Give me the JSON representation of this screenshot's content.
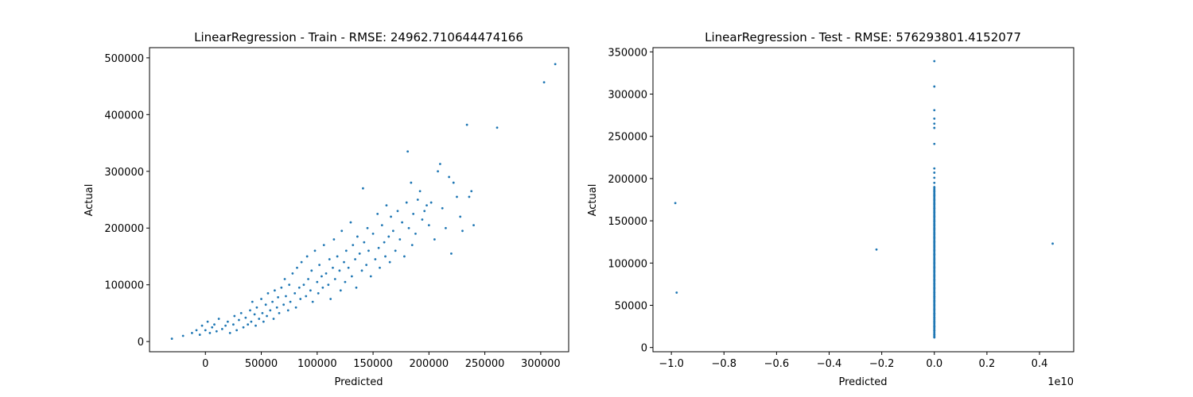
{
  "chart_data": [
    {
      "type": "scatter",
      "title": "LinearRegression - Train - RMSE: 24962.710644474166",
      "xlabel": "Predicted",
      "ylabel": "Actual",
      "xlim": [
        -50000,
        325000
      ],
      "ylim": [
        -18000,
        518000
      ],
      "xticks": [
        0,
        50000,
        100000,
        150000,
        200000,
        250000,
        300000
      ],
      "xtick_labels": [
        "0",
        "50000",
        "100000",
        "150000",
        "200000",
        "250000",
        "300000"
      ],
      "yticks": [
        0,
        100000,
        200000,
        300000,
        400000,
        500000
      ],
      "ytick_labels": [
        "0",
        "100000",
        "200000",
        "300000",
        "400000",
        "500000"
      ],
      "x_offset_label": "",
      "grid": false,
      "color": "#1f77b4",
      "points": [
        [
          -30000,
          5000
        ],
        [
          -20000,
          10000
        ],
        [
          -12000,
          15000
        ],
        [
          -8000,
          20000
        ],
        [
          -5000,
          12000
        ],
        [
          -3000,
          28000
        ],
        [
          0,
          20000
        ],
        [
          2000,
          35000
        ],
        [
          4000,
          15000
        ],
        [
          6000,
          25000
        ],
        [
          8000,
          30000
        ],
        [
          10000,
          18000
        ],
        [
          12000,
          40000
        ],
        [
          15000,
          22000
        ],
        [
          18000,
          28000
        ],
        [
          20000,
          35000
        ],
        [
          22000,
          15000
        ],
        [
          25000,
          30000
        ],
        [
          26000,
          45000
        ],
        [
          28000,
          20000
        ],
        [
          30000,
          38000
        ],
        [
          32000,
          50000
        ],
        [
          34000,
          25000
        ],
        [
          36000,
          42000
        ],
        [
          38000,
          30000
        ],
        [
          40000,
          55000
        ],
        [
          41000,
          35000
        ],
        [
          42000,
          70000
        ],
        [
          44000,
          48000
        ],
        [
          45000,
          28000
        ],
        [
          46000,
          60000
        ],
        [
          48000,
          40000
        ],
        [
          50000,
          75000
        ],
        [
          51000,
          50000
        ],
        [
          52000,
          35000
        ],
        [
          54000,
          65000
        ],
        [
          55000,
          45000
        ],
        [
          56000,
          85000
        ],
        [
          58000,
          55000
        ],
        [
          60000,
          70000
        ],
        [
          61000,
          40000
        ],
        [
          62000,
          90000
        ],
        [
          64000,
          60000
        ],
        [
          65000,
          78000
        ],
        [
          66000,
          50000
        ],
        [
          68000,
          95000
        ],
        [
          70000,
          65000
        ],
        [
          71000,
          110000
        ],
        [
          72000,
          80000
        ],
        [
          74000,
          55000
        ],
        [
          75000,
          100000
        ],
        [
          76000,
          70000
        ],
        [
          78000,
          120000
        ],
        [
          80000,
          85000
        ],
        [
          81000,
          60000
        ],
        [
          82000,
          130000
        ],
        [
          84000,
          95000
        ],
        [
          85000,
          75000
        ],
        [
          86000,
          140000
        ],
        [
          88000,
          100000
        ],
        [
          90000,
          80000
        ],
        [
          91000,
          150000
        ],
        [
          92000,
          110000
        ],
        [
          94000,
          90000
        ],
        [
          95000,
          125000
        ],
        [
          96000,
          70000
        ],
        [
          98000,
          160000
        ],
        [
          100000,
          105000
        ],
        [
          101000,
          85000
        ],
        [
          102000,
          135000
        ],
        [
          104000,
          115000
        ],
        [
          105000,
          95000
        ],
        [
          106000,
          170000
        ],
        [
          108000,
          120000
        ],
        [
          110000,
          100000
        ],
        [
          111000,
          145000
        ],
        [
          112000,
          75000
        ],
        [
          114000,
          130000
        ],
        [
          115000,
          180000
        ],
        [
          116000,
          110000
        ],
        [
          118000,
          150000
        ],
        [
          120000,
          125000
        ],
        [
          121000,
          90000
        ],
        [
          122000,
          195000
        ],
        [
          124000,
          140000
        ],
        [
          125000,
          105000
        ],
        [
          126000,
          160000
        ],
        [
          128000,
          130000
        ],
        [
          130000,
          210000
        ],
        [
          131000,
          115000
        ],
        [
          132000,
          170000
        ],
        [
          134000,
          145000
        ],
        [
          135000,
          95000
        ],
        [
          136000,
          185000
        ],
        [
          138000,
          155000
        ],
        [
          140000,
          125000
        ],
        [
          141000,
          270000
        ],
        [
          142000,
          175000
        ],
        [
          144000,
          135000
        ],
        [
          145000,
          200000
        ],
        [
          146000,
          160000
        ],
        [
          148000,
          115000
        ],
        [
          150000,
          190000
        ],
        [
          152000,
          145000
        ],
        [
          154000,
          225000
        ],
        [
          155000,
          165000
        ],
        [
          156000,
          130000
        ],
        [
          158000,
          205000
        ],
        [
          160000,
          175000
        ],
        [
          161000,
          150000
        ],
        [
          162000,
          240000
        ],
        [
          164000,
          185000
        ],
        [
          165000,
          140000
        ],
        [
          166000,
          220000
        ],
        [
          168000,
          195000
        ],
        [
          170000,
          160000
        ],
        [
          172000,
          230000
        ],
        [
          174000,
          180000
        ],
        [
          176000,
          210000
        ],
        [
          178000,
          150000
        ],
        [
          180000,
          245000
        ],
        [
          181000,
          335000
        ],
        [
          182000,
          200000
        ],
        [
          184000,
          280000
        ],
        [
          185000,
          170000
        ],
        [
          186000,
          225000
        ],
        [
          188000,
          190000
        ],
        [
          190000,
          250000
        ],
        [
          192000,
          265000
        ],
        [
          194000,
          215000
        ],
        [
          196000,
          230000
        ],
        [
          198000,
          240000
        ],
        [
          200000,
          205000
        ],
        [
          202000,
          245000
        ],
        [
          205000,
          180000
        ],
        [
          208000,
          300000
        ],
        [
          210000,
          313000
        ],
        [
          212000,
          235000
        ],
        [
          215000,
          200000
        ],
        [
          218000,
          290000
        ],
        [
          220000,
          155000
        ],
        [
          222000,
          280000
        ],
        [
          225000,
          255000
        ],
        [
          228000,
          220000
        ],
        [
          230000,
          195000
        ],
        [
          234000,
          382000
        ],
        [
          236000,
          255000
        ],
        [
          238000,
          265000
        ],
        [
          240000,
          205000
        ],
        [
          261000,
          377000
        ],
        [
          303000,
          457000
        ],
        [
          313000,
          489000
        ]
      ]
    },
    {
      "type": "scatter",
      "title": "LinearRegression - Test - RMSE: 576293801.4152077",
      "xlabel": "Predicted",
      "ylabel": "Actual",
      "xlim": [
        -10700000000.0,
        5300000000.0
      ],
      "ylim": [
        -5000,
        355000
      ],
      "xticks": [
        -10000000000.0,
        -8000000000.0,
        -6000000000.0,
        -4000000000.0,
        -2000000000.0,
        0,
        2000000000.0,
        4000000000.0
      ],
      "xtick_labels": [
        "−1.0",
        "−0.8",
        "−0.6",
        "−0.4",
        "−0.2",
        "0.0",
        "0.2",
        "0.4"
      ],
      "yticks": [
        0,
        50000,
        100000,
        150000,
        200000,
        250000,
        300000,
        350000
      ],
      "ytick_labels": [
        "0",
        "50000",
        "100000",
        "150000",
        "200000",
        "250000",
        "300000",
        "350000"
      ],
      "x_offset_label": "1e10",
      "grid": false,
      "color": "#1f77b4",
      "points": [
        [
          -9850000000.0,
          171000
        ],
        [
          -9800000000.0,
          65000
        ],
        [
          -2200000000.0,
          116000
        ],
        [
          4500000000.0,
          123000
        ],
        [
          0,
          339000
        ],
        [
          0,
          309000
        ],
        [
          0,
          281000
        ],
        [
          0,
          271000
        ],
        [
          0,
          265000
        ],
        [
          0,
          260000
        ],
        [
          0,
          241000
        ],
        [
          0,
          212000
        ],
        [
          0,
          207000
        ],
        [
          0,
          201000
        ],
        [
          0,
          195000
        ],
        [
          0,
          190000
        ],
        [
          0,
          185000
        ],
        [
          0,
          180000
        ],
        [
          0,
          175000
        ],
        [
          0,
          170000
        ],
        [
          0,
          165000
        ],
        [
          0,
          160000
        ],
        [
          0,
          155000
        ],
        [
          0,
          150000
        ],
        [
          0,
          145000
        ],
        [
          0,
          140000
        ],
        [
          0,
          135000
        ],
        [
          0,
          130000
        ],
        [
          0,
          125000
        ],
        [
          0,
          120000
        ],
        [
          0,
          115000
        ],
        [
          0,
          110000
        ],
        [
          0,
          105000
        ],
        [
          0,
          100000
        ],
        [
          0,
          95000
        ],
        [
          0,
          90000
        ],
        [
          0,
          85000
        ],
        [
          0,
          80000
        ],
        [
          0,
          75000
        ],
        [
          0,
          70000
        ],
        [
          0,
          65000
        ],
        [
          0,
          60000
        ],
        [
          0,
          55000
        ],
        [
          0,
          50000
        ],
        [
          0,
          45000
        ],
        [
          0,
          40000
        ],
        [
          0,
          35000
        ],
        [
          0,
          30000
        ],
        [
          0,
          25000
        ],
        [
          0,
          20000
        ],
        [
          0,
          15000
        ],
        [
          0,
          12000
        ]
      ]
    }
  ]
}
